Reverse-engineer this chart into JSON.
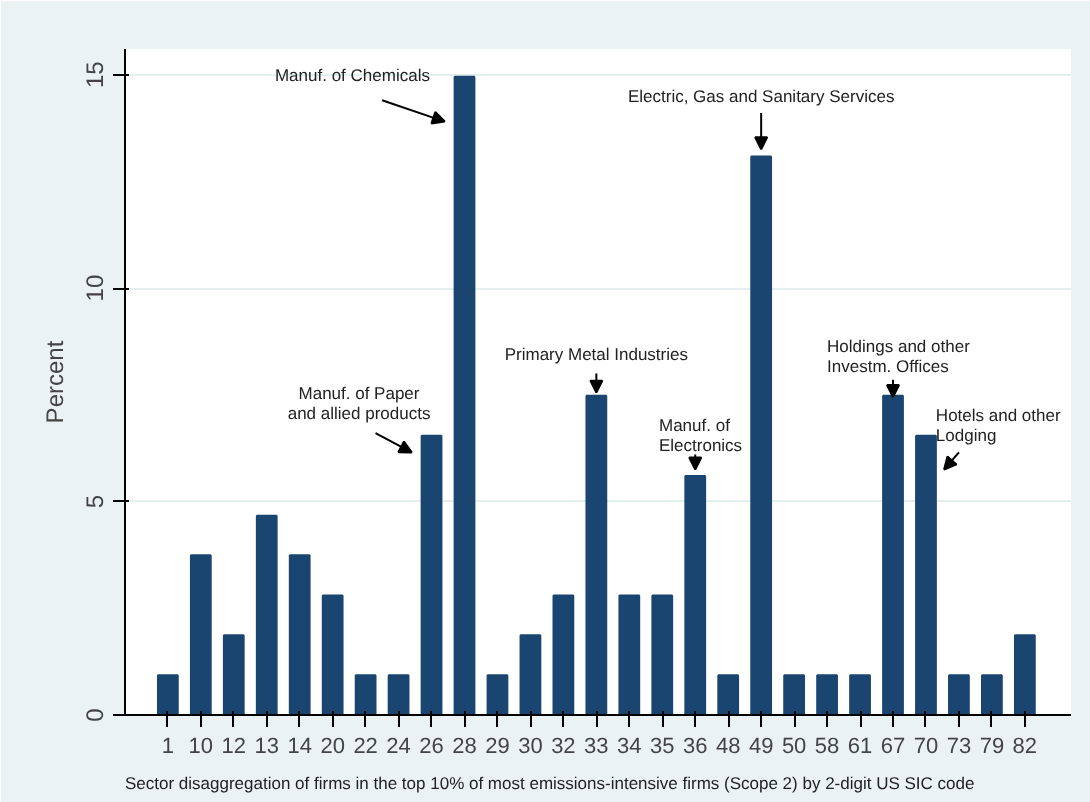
{
  "chart_data": {
    "type": "bar",
    "ylabel": "Percent",
    "categories": [
      "1",
      "10",
      "12",
      "13",
      "14",
      "20",
      "22",
      "24",
      "26",
      "28",
      "29",
      "30",
      "32",
      "33",
      "34",
      "35",
      "36",
      "48",
      "49",
      "50",
      "58",
      "61",
      "67",
      "70",
      "73",
      "79",
      "82"
    ],
    "values": [
      0.93,
      3.74,
      1.87,
      4.67,
      3.74,
      2.8,
      0.93,
      0.93,
      6.54,
      14.95,
      0.93,
      1.87,
      2.8,
      7.48,
      2.8,
      2.8,
      5.6,
      0.93,
      13.08,
      0.93,
      0.93,
      0.93,
      7.48,
      6.54,
      0.93,
      0.93,
      1.87
    ],
    "color": "#1a4570",
    "ylim": [
      0,
      15.6
    ],
    "yticks": [
      0,
      5,
      10,
      15
    ],
    "grid": "y",
    "annotations": [
      {
        "text": "Manuf. of Chemicals",
        "x": "28",
        "y": 13.9
      },
      {
        "text": "Electric, Gas and Sanitary Services",
        "x": "49",
        "y": 13.25
      },
      {
        "text": "Primary Metal Industries",
        "x": "33",
        "y": 7.55
      },
      {
        "text": "Manuf. of Paper\nand allied products",
        "x": "26",
        "y": 6.15
      },
      {
        "text": "Manuf. of\nElectronics",
        "x": "36",
        "y": 5.75
      },
      {
        "text": "Holdings and other\nInvestm. Offices",
        "x": "67",
        "y": 7.45
      },
      {
        "text": "Hotels and other\nLodging",
        "x": "70",
        "y": 5.75
      },
      "Sector disaggregation of firms in the top 10% of most emissions-intensive firms (Scope 2) by 2-digit US SIC code"
    ]
  }
}
